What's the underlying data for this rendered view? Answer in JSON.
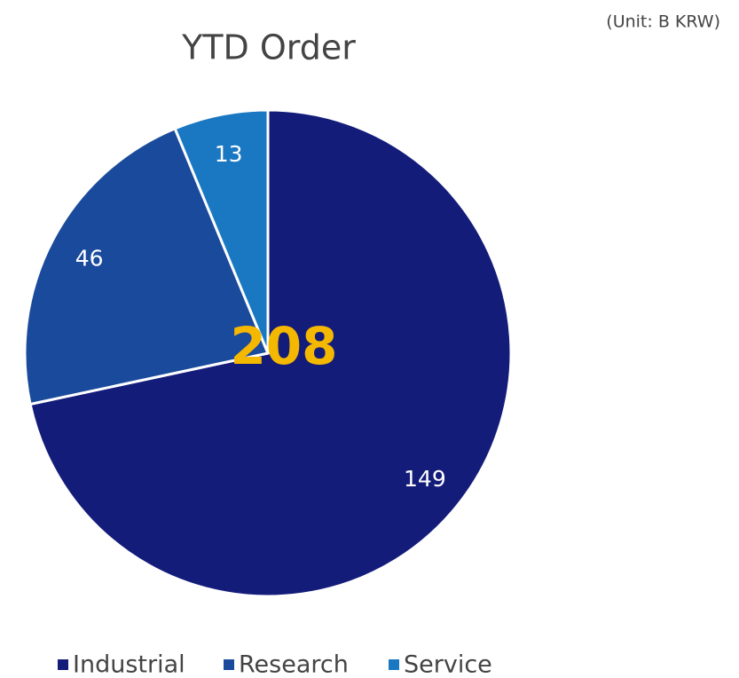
{
  "chart_data": {
    "type": "pie",
    "title": "YTD Order",
    "unit_note": "(Unit: B KRW)",
    "categories": [
      "Industrial",
      "Research",
      "Service"
    ],
    "values": [
      149,
      46,
      13
    ],
    "colors": [
      "#141c7a",
      "#1a4a9c",
      "#1a78c2"
    ],
    "center_label": 208,
    "legend": "bottom"
  }
}
